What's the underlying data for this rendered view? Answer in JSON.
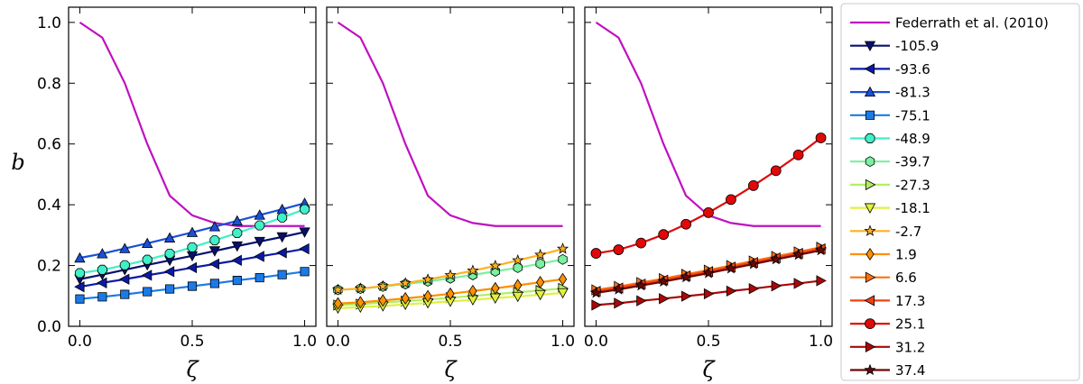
{
  "chart_data": {
    "type": "line",
    "ylabel": "b",
    "xlabel": "ζ",
    "xlim": [
      -0.05,
      1.05
    ],
    "ylim": [
      0,
      1.05
    ],
    "x_ticks": [
      0.0,
      0.5,
      1.0
    ],
    "x_tick_labels": [
      "0.0",
      "0.5",
      "1.0"
    ],
    "y_ticks": [
      0.0,
      0.2,
      0.4,
      0.6,
      0.8,
      1.0
    ],
    "y_tick_labels": [
      "0.0",
      "0.2",
      "0.4",
      "0.6",
      "0.8",
      "1.0"
    ],
    "x": [
      0.0,
      0.1,
      0.2,
      0.3,
      0.4,
      0.5,
      0.6,
      0.7,
      0.8,
      0.9,
      1.0
    ],
    "legend_placement": "outside-right",
    "reference": {
      "name": "Federrath et al. (2010)",
      "color": "#c010c0",
      "values": [
        1.0,
        0.95,
        0.8,
        0.6,
        0.43,
        0.365,
        0.34,
        0.33,
        0.33,
        0.33,
        0.33
      ]
    },
    "series": [
      {
        "name": "-105.9",
        "panel": 0,
        "marker": "triangle-down",
        "color": "#08106e",
        "start": 0.155,
        "end": 0.31,
        "shape": 1.0
      },
      {
        "name": "-93.6",
        "panel": 0,
        "marker": "triangle-left",
        "color": "#0a1aa8",
        "start": 0.13,
        "end": 0.255,
        "shape": 1.0
      },
      {
        "name": "-81.3",
        "panel": 0,
        "marker": "triangle-up",
        "color": "#1a4fd8",
        "start": 0.225,
        "end": 0.405,
        "shape": 1.1
      },
      {
        "name": "-75.1",
        "panel": 0,
        "marker": "square",
        "color": "#1a7ae8",
        "start": 0.09,
        "end": 0.18,
        "shape": 1.1
      },
      {
        "name": "-48.9",
        "panel": 0,
        "marker": "octagon",
        "color": "#40f0c8",
        "start": 0.175,
        "end": 0.385,
        "shape": 1.3
      },
      {
        "name": "-39.7",
        "panel": 1,
        "marker": "hexagon",
        "color": "#7af0a0",
        "start": 0.12,
        "end": 0.22,
        "shape": 1.4
      },
      {
        "name": "-27.3",
        "panel": 1,
        "marker": "triangle-right",
        "color": "#b0f060",
        "start": 0.07,
        "end": 0.125,
        "shape": 1.2
      },
      {
        "name": "-18.1",
        "panel": 1,
        "marker": "triangle-down",
        "color": "#e0f040",
        "start": 0.06,
        "end": 0.11,
        "shape": 1.2
      },
      {
        "name": "-2.7",
        "panel": 1,
        "marker": "star",
        "color": "#ffb020",
        "start": 0.12,
        "end": 0.255,
        "shape": 1.5
      },
      {
        "name": "1.9",
        "panel": 1,
        "marker": "diamond",
        "color": "#ff9000",
        "start": 0.075,
        "end": 0.155,
        "shape": 1.3
      },
      {
        "name": "6.6",
        "panel": 2,
        "marker": "triangle-right",
        "color": "#ff7010",
        "start": 0.12,
        "end": 0.26,
        "shape": 1.1
      },
      {
        "name": "17.3",
        "panel": 2,
        "marker": "triangle-left",
        "color": "#f04010",
        "start": 0.115,
        "end": 0.255,
        "shape": 1.1
      },
      {
        "name": "25.1",
        "panel": 2,
        "marker": "circle",
        "color": "#e00808",
        "start": 0.24,
        "end": 0.62,
        "shape": 1.5
      },
      {
        "name": "31.2",
        "panel": 2,
        "marker": "triangle-right",
        "color": "#a80808",
        "start": 0.07,
        "end": 0.15,
        "shape": 1.1
      },
      {
        "name": "37.4",
        "panel": 2,
        "marker": "star",
        "color": "#6a0808",
        "start": 0.11,
        "end": 0.25,
        "shape": 1.1
      }
    ]
  }
}
